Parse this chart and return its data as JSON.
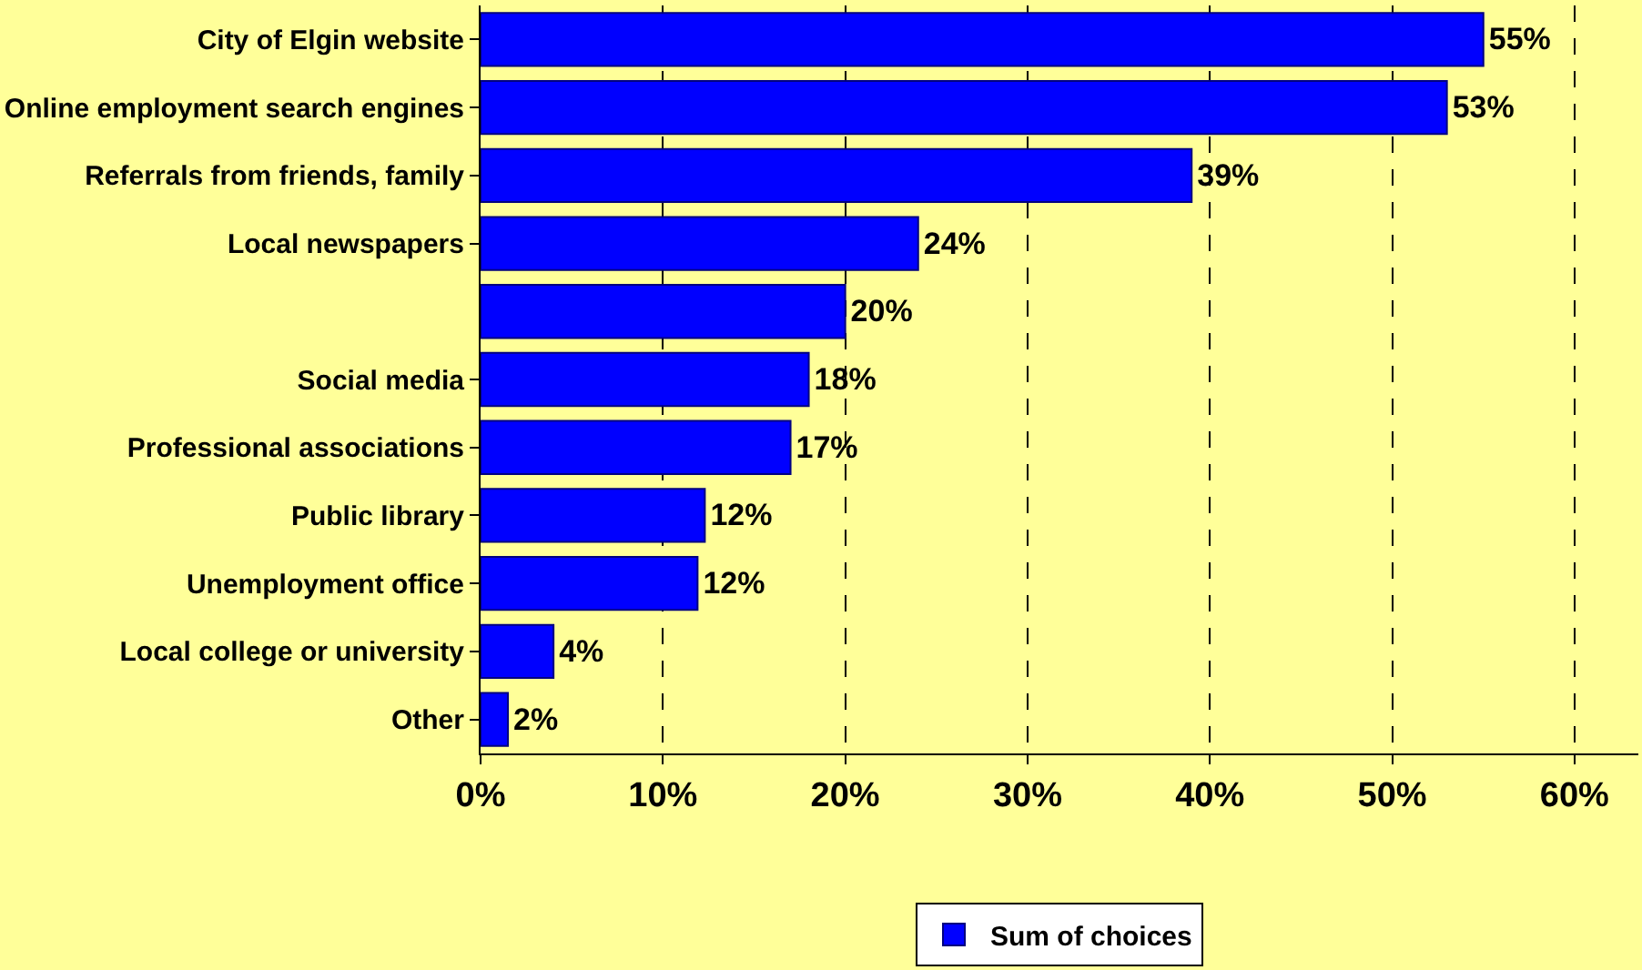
{
  "chart_data": {
    "type": "bar",
    "orientation": "horizontal",
    "categories": [
      "City of Elgin website",
      "Online employment search engines",
      "Referrals from friends, family",
      "Local newspapers",
      null,
      "Social media",
      "Professional associations",
      "Public library",
      "Unemployment office",
      "Local college or university",
      "Other"
    ],
    "series": [
      {
        "name": "Sum of choices",
        "color": "#0000ff",
        "values": [
          55,
          53,
          39,
          24,
          20,
          18,
          17,
          12.3,
          11.9,
          4,
          1.5
        ],
        "value_labels": [
          "55%",
          "53%",
          "39%",
          "24%",
          "20%",
          "18%",
          "17%",
          "12%",
          "12%",
          "4%",
          "2%"
        ]
      }
    ],
    "xlim": [
      0,
      63.5
    ],
    "xticks": [
      {
        "value": 0,
        "label": "0%"
      },
      {
        "value": 10,
        "label": "10%"
      },
      {
        "value": 20,
        "label": "20%"
      },
      {
        "value": 30,
        "label": "30%"
      },
      {
        "value": 40,
        "label": "40%"
      },
      {
        "value": 50,
        "label": "50%"
      },
      {
        "value": 60,
        "label": "60%"
      }
    ],
    "grid": "x",
    "legend": "bottom"
  }
}
